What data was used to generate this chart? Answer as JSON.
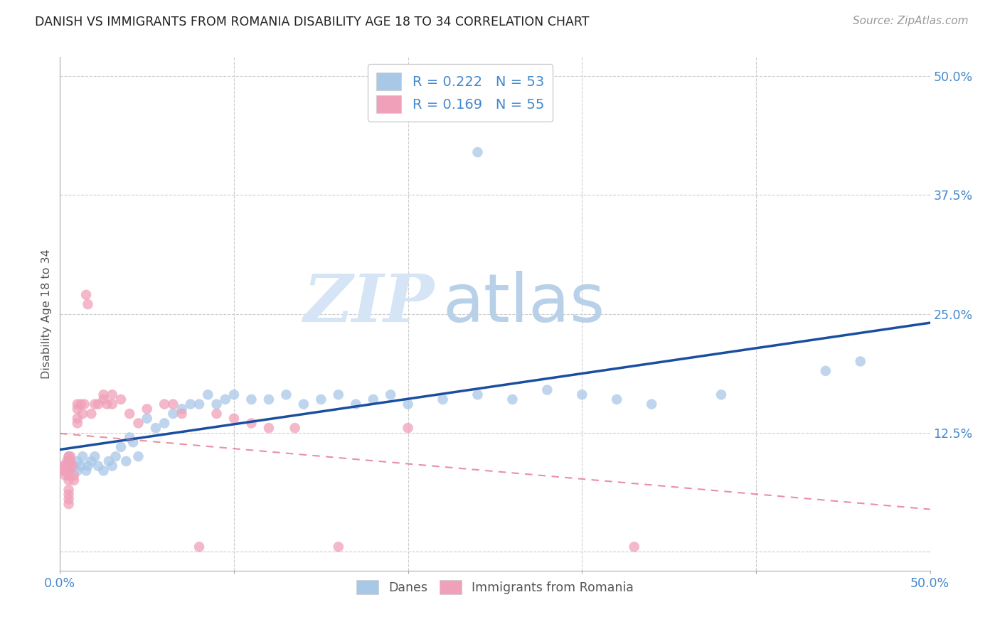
{
  "title": "DANISH VS IMMIGRANTS FROM ROMANIA DISABILITY AGE 18 TO 34 CORRELATION CHART",
  "source": "Source: ZipAtlas.com",
  "ylabel": "Disability Age 18 to 34",
  "xmin": 0.0,
  "xmax": 0.5,
  "ymin": -0.02,
  "ymax": 0.52,
  "legend_r_danes": "0.222",
  "legend_n_danes": "53",
  "legend_r_immigrants": "0.169",
  "legend_n_immigrants": "55",
  "danes_color": "#a8c8e8",
  "immigrants_color": "#f0a0b8",
  "trend_danes_color": "#1a4ea0",
  "trend_immigrants_color": "#e06080",
  "danes_x": [
    0.005,
    0.005,
    0.007,
    0.008,
    0.01,
    0.01,
    0.012,
    0.013,
    0.015,
    0.016,
    0.018,
    0.02,
    0.022,
    0.025,
    0.028,
    0.03,
    0.032,
    0.035,
    0.038,
    0.04,
    0.042,
    0.045,
    0.05,
    0.055,
    0.06,
    0.065,
    0.07,
    0.075,
    0.08,
    0.085,
    0.09,
    0.095,
    0.1,
    0.11,
    0.12,
    0.13,
    0.14,
    0.15,
    0.16,
    0.17,
    0.18,
    0.19,
    0.2,
    0.22,
    0.24,
    0.26,
    0.28,
    0.3,
    0.32,
    0.34,
    0.38,
    0.44,
    0.46
  ],
  "danes_y": [
    0.1,
    0.095,
    0.09,
    0.09,
    0.095,
    0.085,
    0.09,
    0.1,
    0.085,
    0.09,
    0.095,
    0.1,
    0.09,
    0.085,
    0.095,
    0.09,
    0.1,
    0.11,
    0.095,
    0.12,
    0.115,
    0.1,
    0.14,
    0.13,
    0.135,
    0.145,
    0.15,
    0.155,
    0.155,
    0.165,
    0.155,
    0.16,
    0.165,
    0.16,
    0.16,
    0.165,
    0.155,
    0.16,
    0.165,
    0.155,
    0.16,
    0.165,
    0.155,
    0.16,
    0.165,
    0.16,
    0.17,
    0.165,
    0.16,
    0.155,
    0.165,
    0.19,
    0.2
  ],
  "danes_outlier_x": [
    0.24
  ],
  "danes_outlier_y": [
    0.42
  ],
  "immigrants_x": [
    0.002,
    0.002,
    0.003,
    0.003,
    0.003,
    0.004,
    0.004,
    0.005,
    0.005,
    0.005,
    0.005,
    0.005,
    0.005,
    0.005,
    0.005,
    0.005,
    0.005,
    0.006,
    0.006,
    0.007,
    0.008,
    0.008,
    0.01,
    0.01,
    0.01,
    0.01,
    0.012,
    0.013,
    0.014,
    0.015,
    0.016,
    0.018,
    0.02,
    0.022,
    0.025,
    0.025,
    0.027,
    0.03,
    0.03,
    0.035,
    0.04,
    0.045,
    0.05,
    0.06,
    0.065,
    0.07,
    0.08,
    0.09,
    0.1,
    0.11,
    0.12,
    0.135,
    0.16,
    0.2,
    0.33
  ],
  "immigrants_y": [
    0.085,
    0.09,
    0.08,
    0.085,
    0.09,
    0.095,
    0.085,
    0.1,
    0.095,
    0.09,
    0.085,
    0.08,
    0.075,
    0.065,
    0.06,
    0.055,
    0.05,
    0.1,
    0.095,
    0.09,
    0.08,
    0.075,
    0.155,
    0.15,
    0.14,
    0.135,
    0.155,
    0.145,
    0.155,
    0.27,
    0.26,
    0.145,
    0.155,
    0.155,
    0.165,
    0.16,
    0.155,
    0.165,
    0.155,
    0.16,
    0.145,
    0.135,
    0.15,
    0.155,
    0.155,
    0.145,
    0.005,
    0.145,
    0.14,
    0.135,
    0.13,
    0.13,
    0.005,
    0.13,
    0.005
  ],
  "background_color": "#ffffff",
  "grid_color": "#cccccc",
  "title_color": "#222222",
  "axis_label_color": "#4488cc",
  "watermark_zip": "ZIP",
  "watermark_atlas": "atlas",
  "watermark_color_zip": "#d5e5f5",
  "watermark_color_atlas": "#b8d0e8"
}
